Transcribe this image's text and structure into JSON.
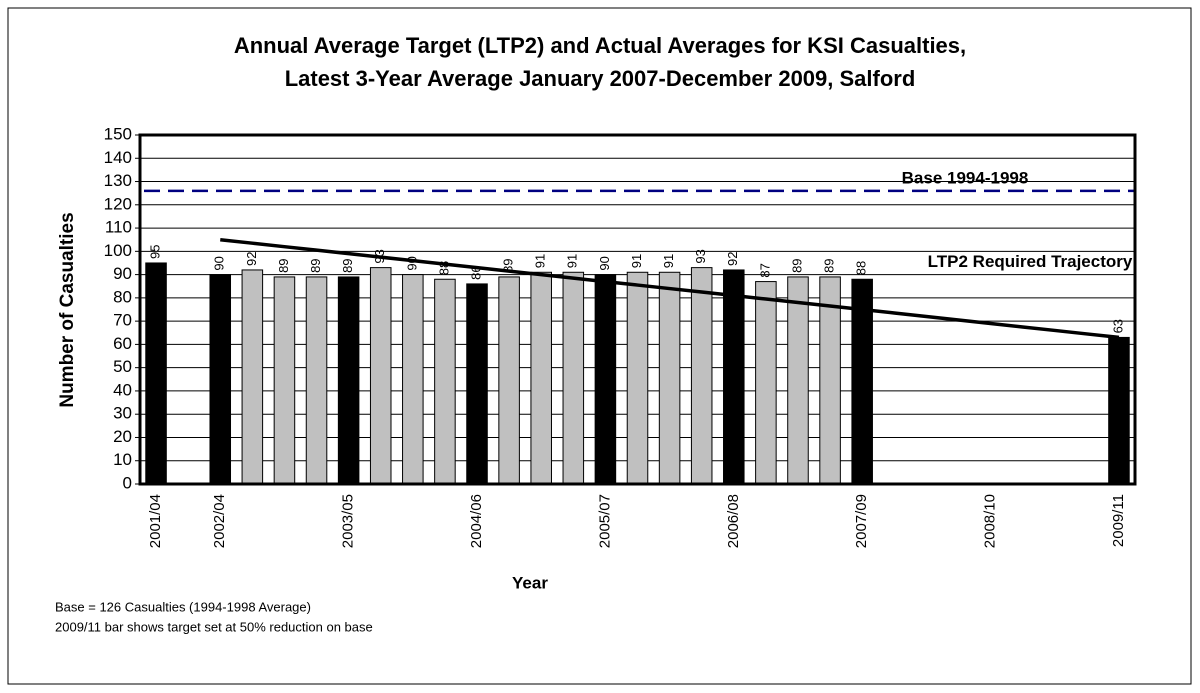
{
  "chart_data": {
    "type": "bar",
    "title_lines": [
      "Annual Average Target (LTP2) and Actual Averages for KSI Casualties,",
      "Latest 3-Year Average January 2007-December 2009, Salford"
    ],
    "y_label": "Number of Casualties",
    "x_label": "Year",
    "categories": [
      "2001/04",
      null,
      "2002/04",
      null,
      null,
      null,
      "2003/05",
      null,
      null,
      null,
      "2004/06",
      null,
      null,
      null,
      "2005/07",
      null,
      null,
      null,
      "2006/08",
      null,
      null,
      null,
      "2007/09",
      null,
      null,
      null,
      "2008/10",
      null,
      null,
      null,
      "2009/11"
    ],
    "values": [
      95,
      null,
      90,
      92,
      89,
      89,
      89,
      93,
      90,
      88,
      86,
      89,
      91,
      91,
      90,
      91,
      91,
      93,
      92,
      87,
      89,
      89,
      88,
      null,
      null,
      null,
      null,
      null,
      null,
      null,
      63
    ],
    "bar_colors": [
      "#000000",
      null,
      "#000000",
      "#c0c0c0",
      "#c0c0c0",
      "#c0c0c0",
      "#000000",
      "#c0c0c0",
      "#c0c0c0",
      "#c0c0c0",
      "#000000",
      "#c0c0c0",
      "#c0c0c0",
      "#c0c0c0",
      "#000000",
      "#c0c0c0",
      "#c0c0c0",
      "#c0c0c0",
      "#000000",
      "#c0c0c0",
      "#c0c0c0",
      "#c0c0c0",
      "#000000",
      null,
      null,
      null,
      null,
      null,
      null,
      null,
      "#000000"
    ],
    "trajectory": {
      "name": "LTP2 Required Trajectory",
      "color": "#000000",
      "values": [
        null,
        null,
        105,
        103.5,
        102,
        100.5,
        99,
        97.5,
        96,
        94.5,
        93,
        91.5,
        90,
        88.5,
        87,
        85.5,
        84,
        82.5,
        81,
        79.5,
        78,
        76.5,
        75,
        73.5,
        72,
        70.5,
        69,
        67.5,
        66,
        64.5,
        63
      ]
    },
    "baseline": {
      "name": "Base 1994-1998",
      "value": 126,
      "color": "#000080"
    },
    "ylim": [
      0,
      150
    ],
    "yticks": [
      0,
      10,
      20,
      30,
      40,
      50,
      60,
      70,
      80,
      90,
      100,
      110,
      120,
      130,
      140,
      150
    ],
    "grid": true,
    "notes": [
      "Base = 126 Casualties (1994-1998 Average)",
      "2009/11 bar shows target set at 50% reduction on base"
    ]
  }
}
